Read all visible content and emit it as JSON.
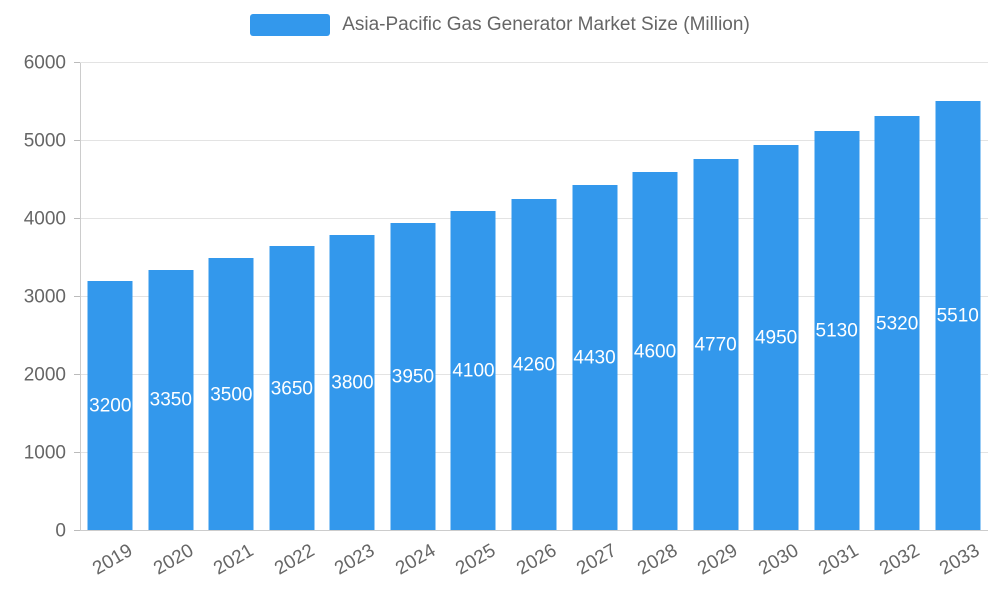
{
  "chart_data": {
    "type": "bar",
    "title": "Asia-Pacific Gas Generator Market Size (Million)",
    "categories": [
      "2019",
      "2020",
      "2021",
      "2022",
      "2023",
      "2024",
      "2025",
      "2026",
      "2027",
      "2028",
      "2029",
      "2030",
      "2031",
      "2032",
      "2033"
    ],
    "values": [
      3200,
      3350,
      3500,
      3650,
      3800,
      3950,
      4100,
      4260,
      4430,
      4600,
      4770,
      4950,
      5130,
      5320,
      5510
    ],
    "xlabel": "",
    "ylabel": "",
    "ylim": [
      0,
      6000
    ],
    "ytick_step": 1000,
    "grid": true,
    "legend_position": "top",
    "bar_color": "#3398EC",
    "bar_label_color": "#ffffff",
    "axis_text_color": "#666666",
    "grid_color": "#e3e3e3",
    "axis_line_color": "#cccccc"
  }
}
